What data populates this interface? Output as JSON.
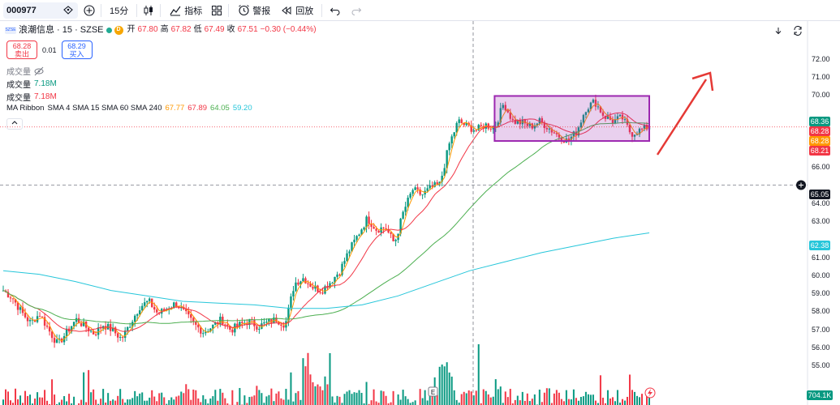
{
  "toolbar": {
    "symbol": "000977",
    "interval": "15分",
    "indicators_label": "指标",
    "alert_label": "警报",
    "replay_label": "回放"
  },
  "legend": {
    "title": "浪潮信息 · 15 · SZSE",
    "d_badge": "D",
    "open_label": "开",
    "open": "67.80",
    "high_label": "高",
    "high": "67.82",
    "low_label": "低",
    "low": "67.49",
    "close_label": "收",
    "close": "67.51",
    "change": "−0.30 (−0.44%)",
    "sell_price": "68.28",
    "sell_label": "卖出",
    "spread": "0.01",
    "buy_price": "68.29",
    "buy_label": "买入",
    "volume_label": "成交量",
    "vol1_label": "成交量",
    "vol1_value": "7.18M",
    "vol2_label": "成交量",
    "vol2_value": "7.18M",
    "ma_label": "MA Ribbon",
    "ma_params": "SMA 4 SMA 15 SMA 60 SMA 240",
    "ma_values": [
      "67.77",
      "67.89",
      "64.05",
      "59.20"
    ]
  },
  "colors": {
    "up": "#089981",
    "down": "#f23645",
    "sma4": "#ff9800",
    "sma15": "#f23645",
    "sma60": "#4caf50",
    "sma240": "#26c6da",
    "box": "#9c27b0",
    "arrow": "#e53935"
  },
  "price_axis": {
    "ticks": [
      "72.00",
      "71.00",
      "70.00",
      "68.00",
      "67.00",
      "66.00",
      "64.00",
      "63.00",
      "61.00",
      "60.00",
      "59.00",
      "58.00",
      "57.00",
      "56.00",
      "55.00"
    ],
    "tags": [
      {
        "value": "68.36",
        "color": "#089981"
      },
      {
        "value": "68.28",
        "color": "#f23645"
      },
      {
        "value": "68.28",
        "color": "#ff9800"
      },
      {
        "value": "68.21",
        "color": "#f23645"
      },
      {
        "value": "65.05",
        "color": "#131722"
      },
      {
        "value": "62.38",
        "color": "#26c6da"
      },
      {
        "value": "704.1K",
        "color": "#089981"
      }
    ]
  },
  "chart_data": {
    "type": "candlestick",
    "ylim": [
      54.8,
      72.7
    ],
    "crosshair_price": 65.05,
    "current_price": 68.28,
    "close_path": [
      59.2,
      58.8,
      58.0,
      57.4,
      57.9,
      57.0,
      56.2,
      56.9,
      57.6,
      57.2,
      56.8,
      57.3,
      57.0,
      56.5,
      57.4,
      58.3,
      58.6,
      57.9,
      58.2,
      58.5,
      57.9,
      57.3,
      56.9,
      57.2,
      57.6,
      57.0,
      57.3,
      57.5,
      57.2,
      57.4,
      57.6,
      57.3,
      59.6,
      59.9,
      59.4,
      59.2,
      59.7,
      60.3,
      61.4,
      62.3,
      63.2,
      62.6,
      62.7,
      61.8,
      63.6,
      64.8,
      64.5,
      64.9,
      65.1,
      67.3,
      68.6,
      68.3,
      68.1,
      68.4,
      68.2,
      69.6,
      68.6,
      68.5,
      68.3,
      68.6,
      68.2,
      67.8,
      67.5,
      68.0,
      69.3,
      69.7,
      68.9,
      68.6,
      68.8,
      67.9,
      68.1,
      68.3
    ],
    "sma240_path": [
      60.3,
      60.1,
      59.7,
      59.2,
      58.9,
      58.6,
      58.5,
      58.4,
      58.2,
      58.2,
      58.4,
      58.9,
      59.6,
      60.3,
      60.8,
      61.3,
      61.7,
      62.1,
      62.4
    ],
    "highlight_box": {
      "x_start_index": 54,
      "x_end_index": 71,
      "top": 70.0,
      "bottom": 67.5
    },
    "volume_unit": "K"
  }
}
